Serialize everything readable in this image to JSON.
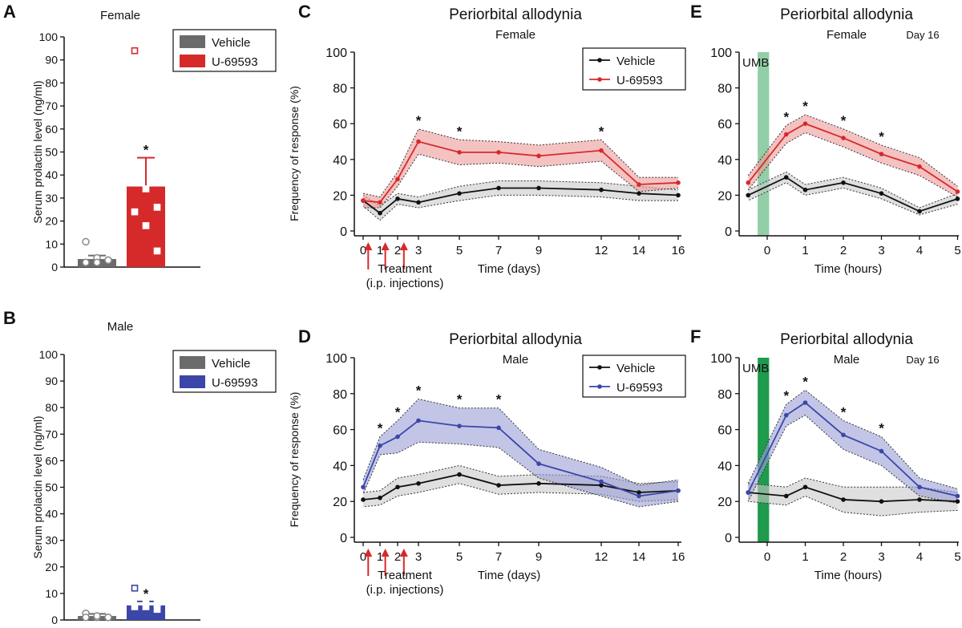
{
  "colors": {
    "vehicle": "#6b6b6b",
    "vehicle_line": "#111111",
    "vehicle_band": "#c9c9c9",
    "female_accent": "#d62a2a",
    "female_band": "#ef9a9a",
    "male_accent": "#3b46a8",
    "male_band": "#9a9fd6",
    "umb_light": "#7fc79a",
    "umb_dark": "#1e9b4c"
  },
  "chart_data": [
    {
      "panel": "A",
      "type": "bar",
      "subtitle": "Female",
      "ylabel": "Serum prolactin level (ng/ml)",
      "ylim": [
        0,
        100
      ],
      "yticks": [
        "0",
        "10",
        "20",
        "30",
        "40",
        "50",
        "60",
        "70",
        "80",
        "90",
        "100"
      ],
      "legend": [
        "Vehicle",
        "U-69593"
      ],
      "series": [
        {
          "name": "Vehicle",
          "value": 3.5,
          "error": 1.5,
          "points": [
            11,
            4,
            3,
            2,
            2,
            3
          ],
          "sig": ""
        },
        {
          "name": "U-69593",
          "value": 35,
          "error": 12.5,
          "points": [
            94,
            34,
            26,
            24,
            18,
            7
          ],
          "sig": "*"
        }
      ]
    },
    {
      "panel": "B",
      "type": "bar",
      "subtitle": "Male",
      "ylabel": "Serum prolactin level (ng/ml)",
      "ylim": [
        0,
        100
      ],
      "yticks": [
        "0",
        "10",
        "20",
        "30",
        "40",
        "50",
        "60",
        "70",
        "80",
        "90",
        "100"
      ],
      "legend": [
        "Vehicle",
        "U-69593"
      ],
      "series": [
        {
          "name": "Vehicle",
          "value": 1.5,
          "error": 0.8,
          "points": [
            2.5,
            1,
            1,
            1,
            1.5,
            1
          ],
          "sig": ""
        },
        {
          "name": "U-69593",
          "value": 5.5,
          "error": 1.5,
          "points": [
            12,
            7,
            6,
            5,
            5,
            4
          ],
          "sig": "*"
        }
      ]
    },
    {
      "panel": "C",
      "type": "line",
      "title": "Periorbital allodynia",
      "subtitle": "Female",
      "ylabel": "Frequency of response (%)",
      "xlabel": "Time (days)",
      "ylim": [
        0,
        100
      ],
      "yticks": [
        "0",
        "20",
        "40",
        "60",
        "80",
        "100"
      ],
      "xticks": [
        "0",
        "1",
        "2",
        "3",
        "5",
        "7",
        "9",
        "12",
        "14",
        "16"
      ],
      "x": [
        0,
        1,
        2,
        3,
        5,
        7,
        9,
        12,
        14,
        16
      ],
      "treatment_days": [
        0.3,
        1.3,
        2.3
      ],
      "treatment_label": [
        "Treatment",
        "(i.p. injections)"
      ],
      "legend": [
        "Vehicle",
        "U-69593"
      ],
      "series": [
        {
          "name": "Vehicle",
          "values": [
            17,
            10,
            18,
            16,
            21,
            24,
            24,
            23,
            21,
            20
          ],
          "sem": [
            3,
            4,
            3,
            3,
            4,
            4,
            4,
            4,
            4,
            3
          ],
          "sig": [
            "",
            "",
            "",
            "",
            "",
            "",
            "",
            "",
            "",
            ""
          ]
        },
        {
          "name": "U-69593",
          "values": [
            17,
            16,
            29,
            50,
            44,
            44,
            42,
            45,
            26,
            27
          ],
          "sem": [
            4,
            3,
            4,
            7,
            7,
            6,
            6,
            6,
            4,
            3
          ],
          "sig": [
            "",
            "",
            "",
            "*",
            "*",
            "",
            "",
            "*",
            "",
            ""
          ]
        }
      ]
    },
    {
      "panel": "D",
      "type": "line",
      "title": "Periorbital allodynia",
      "subtitle": "Male",
      "ylabel": "Frequency of response (%)",
      "xlabel": "Time (days)",
      "ylim": [
        0,
        100
      ],
      "yticks": [
        "0",
        "20",
        "40",
        "60",
        "80",
        "100"
      ],
      "xticks": [
        "0",
        "1",
        "2",
        "3",
        "5",
        "7",
        "9",
        "12",
        "14",
        "16"
      ],
      "x": [
        0,
        1,
        2,
        3,
        5,
        7,
        9,
        12,
        14,
        16
      ],
      "treatment_days": [
        0.3,
        1.3,
        2.3
      ],
      "treatment_label": [
        "Treatment",
        "(i.p. injections)"
      ],
      "legend": [
        "Vehicle",
        "U-69593"
      ],
      "series": [
        {
          "name": "Vehicle",
          "values": [
            21,
            22,
            28,
            30,
            35,
            29,
            30,
            29,
            25,
            26
          ],
          "sem": [
            4,
            4,
            5,
            5,
            5,
            5,
            5,
            5,
            5,
            5
          ],
          "sig": [
            "",
            "",
            "",
            "",
            "",
            "",
            "",
            "",
            "",
            ""
          ]
        },
        {
          "name": "U-69593",
          "values": [
            28,
            51,
            56,
            65,
            62,
            61,
            41,
            31,
            23,
            26
          ],
          "sem": [
            4,
            5,
            9,
            12,
            10,
            11,
            8,
            8,
            6,
            6
          ],
          "sig": [
            "",
            "*",
            "*",
            "*",
            "*",
            "*",
            "",
            "",
            "",
            ""
          ]
        }
      ]
    },
    {
      "panel": "E",
      "type": "line",
      "title": "Periorbital allodynia",
      "subtitle": "Female",
      "day_label": "Day 16",
      "umb_label": "UMB",
      "ylabel": "",
      "xlabel": "Time (hours)",
      "ylim": [
        0,
        100
      ],
      "yticks": [
        "0",
        "20",
        "40",
        "60",
        "80",
        "100"
      ],
      "xticks": [
        "0",
        "1",
        "2",
        "3",
        "4",
        "5"
      ],
      "x": [
        -0.5,
        0.5,
        1,
        2,
        3,
        4,
        5
      ],
      "umb_span": [
        -0.25,
        0.05
      ],
      "series": [
        {
          "name": "Vehicle",
          "values": [
            20,
            30,
            23,
            27,
            21,
            11,
            18
          ],
          "sem": [
            3,
            3,
            3,
            3,
            3,
            2,
            3
          ],
          "sig": [
            "",
            "",
            "",
            "",
            "",
            "",
            ""
          ]
        },
        {
          "name": "U-69593",
          "values": [
            27,
            54,
            60,
            52,
            43,
            36,
            22
          ],
          "sem": [
            4,
            5,
            5,
            5,
            5,
            5,
            3
          ],
          "sig": [
            "",
            "*",
            "*",
            "*",
            "*",
            "",
            ""
          ]
        }
      ]
    },
    {
      "panel": "F",
      "type": "line",
      "title": "Periorbital allodynia",
      "subtitle": "Male",
      "day_label": "Day 16",
      "umb_label": "UMB",
      "ylabel": "",
      "xlabel": "Time (hours)",
      "ylim": [
        0,
        100
      ],
      "yticks": [
        "0",
        "20",
        "40",
        "60",
        "80",
        "100"
      ],
      "xticks": [
        "0",
        "1",
        "2",
        "3",
        "4",
        "5"
      ],
      "x": [
        -0.5,
        0.5,
        1,
        2,
        3,
        4,
        5
      ],
      "umb_span": [
        -0.25,
        0.05
      ],
      "series": [
        {
          "name": "Vehicle",
          "values": [
            25,
            23,
            28,
            21,
            20,
            21,
            20
          ],
          "sem": [
            5,
            5,
            5,
            7,
            8,
            7,
            5
          ],
          "sig": [
            "",
            "",
            "",
            "",
            "",
            "",
            ""
          ]
        },
        {
          "name": "U-69593",
          "values": [
            25,
            68,
            75,
            57,
            48,
            28,
            23
          ],
          "sem": [
            5,
            6,
            7,
            8,
            8,
            5,
            4
          ],
          "sig": [
            "",
            "*",
            "*",
            "*",
            "*",
            "",
            ""
          ]
        }
      ]
    }
  ]
}
